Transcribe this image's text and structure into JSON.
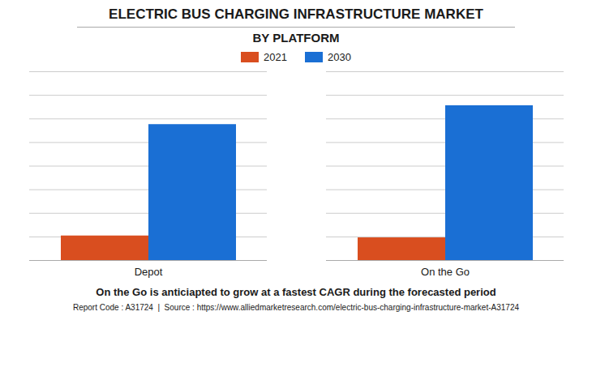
{
  "chart_data": {
    "type": "bar",
    "title": "ELECTRIC BUS CHARGING INFRASTRUCTURE MARKET",
    "subtitle": "BY PLATFORM",
    "categories": [
      "Depot",
      "On the Go"
    ],
    "series": [
      {
        "name": "2021",
        "color": "#D94E1F",
        "values": [
          0.13,
          0.12
        ]
      },
      {
        "name": "2030",
        "color": "#1A6FD4",
        "values": [
          0.72,
          0.82
        ]
      }
    ],
    "ylim": [
      0,
      1.0
    ],
    "yticks": [
      0,
      0.125,
      0.25,
      0.375,
      0.5,
      0.625,
      0.75,
      0.875,
      1.0
    ],
    "grid": true,
    "tick_labels": "x",
    "legend": "top",
    "annotations": [
      "On the Go is anticiapted to grow at a fastest CAGR during the forecasted period",
      "Report Code : A31724  |  Source : https://www.alliedmarketresearch.com/electric-bus-charging-infrastructure-market-A31724"
    ]
  }
}
